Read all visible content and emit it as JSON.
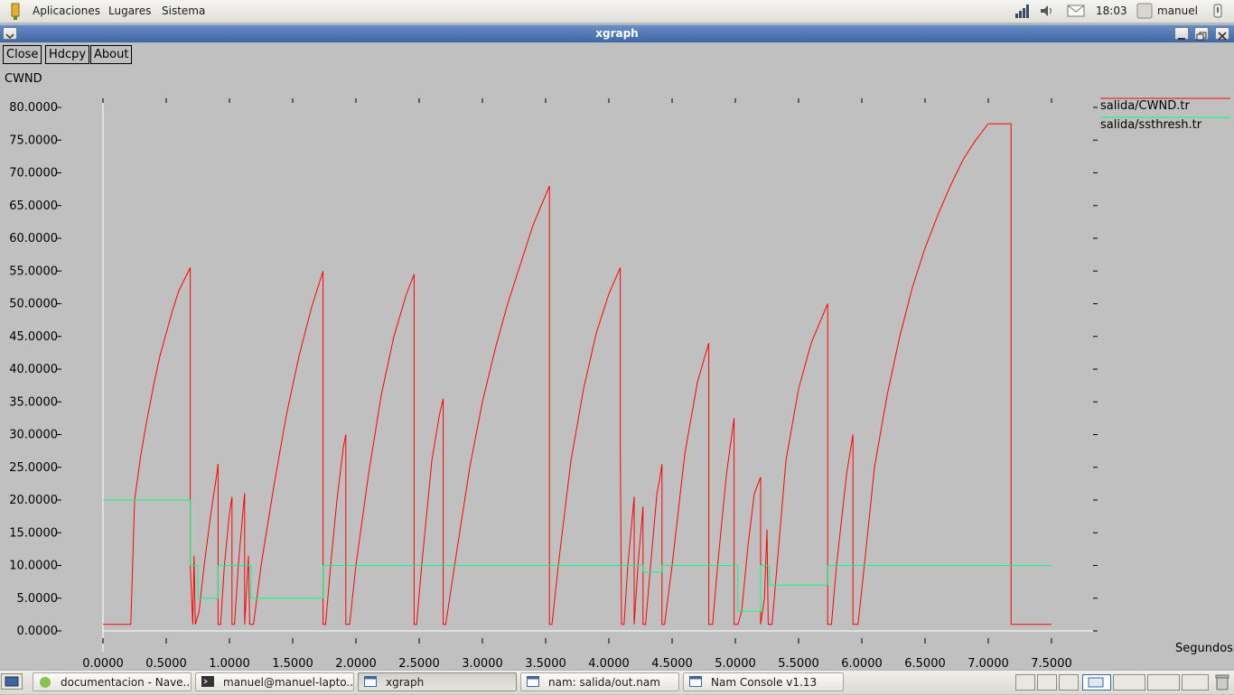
{
  "top_panel": {
    "menus": [
      "Aplicaciones",
      "Lugares",
      "Sistema"
    ],
    "clock": "18:03",
    "user": "manuel",
    "icons": [
      "gnome-foot-icon",
      "network-signal-icon",
      "volume-icon",
      "mail-icon",
      "user-icon",
      "logout-icon"
    ]
  },
  "window": {
    "title": "xgraph",
    "buttons": {
      "close": "Close",
      "hdcpy": "Hdcpy",
      "about": "About"
    },
    "y_axis_title": "CWND",
    "x_axis_title": "Segundos"
  },
  "chart_data": {
    "type": "line",
    "xlim": [
      0,
      7.5
    ],
    "ylim": [
      0,
      80
    ],
    "x_ticks": [
      "0.0000",
      "0.5000",
      "1.0000",
      "1.5000",
      "2.0000",
      "2.5000",
      "3.0000",
      "3.5000",
      "4.0000",
      "4.5000",
      "5.0000",
      "5.5000",
      "6.0000",
      "6.5000",
      "7.0000",
      "7.5000"
    ],
    "y_ticks": [
      "0.0000",
      "5.0000",
      "10.0000",
      "15.0000",
      "20.0000",
      "25.0000",
      "30.0000",
      "35.0000",
      "40.0000",
      "45.0000",
      "50.0000",
      "55.0000",
      "60.0000",
      "65.0000",
      "70.0000",
      "75.0000",
      "80.0000"
    ],
    "legend_position": "top-right",
    "series": [
      {
        "name": "salida/CWND.tr",
        "color": "#ff0000",
        "sawtooth": [
          {
            "t0": 0.23,
            "y0": 20,
            "t1": 0.69,
            "y1": 55
          },
          {
            "t0": 0.92,
            "y0": 2,
            "t1": 0.91,
            "y1": 25.5
          },
          {
            "t0": 1.14,
            "y0": 2,
            "t1": 1.74,
            "y1": 55
          },
          {
            "t0": 1.95,
            "y0": 2,
            "t1": 2.46,
            "y1": 54
          },
          {
            "t0": 2.69,
            "y0": 2,
            "t1": 3.53,
            "y1": 68
          },
          {
            "t0": 3.55,
            "y0": 2,
            "t1": 4.09,
            "y1": 55
          },
          {
            "t0": 4.47,
            "y0": 2,
            "t1": 4.79,
            "y1": 44
          },
          {
            "t0": 5.29,
            "y0": 2,
            "t1": 5.73,
            "y1": 50
          },
          {
            "t0": 5.97,
            "y0": 2,
            "t1": 7.0,
            "y1": 77.5
          }
        ],
        "points": [
          [
            0.0,
            1
          ],
          [
            0.21,
            1
          ],
          [
            0.22,
            1
          ],
          [
            0.25,
            20
          ],
          [
            0.3,
            27
          ],
          [
            0.35,
            32.5
          ],
          [
            0.4,
            37.5
          ],
          [
            0.45,
            42
          ],
          [
            0.5,
            45.5
          ],
          [
            0.55,
            49
          ],
          [
            0.6,
            52
          ],
          [
            0.69,
            55.5
          ],
          [
            0.69,
            10
          ],
          [
            0.71,
            1
          ],
          [
            0.72,
            11.5
          ],
          [
            0.73,
            1
          ],
          [
            0.76,
            3
          ],
          [
            0.8,
            10
          ],
          [
            0.85,
            17.5
          ],
          [
            0.9,
            24
          ],
          [
            0.91,
            25.5
          ],
          [
            0.91,
            1
          ],
          [
            0.93,
            1
          ],
          [
            0.96,
            10
          ],
          [
            1.0,
            18
          ],
          [
            1.02,
            20.5
          ],
          [
            1.02,
            1
          ],
          [
            1.04,
            1
          ],
          [
            1.07,
            10
          ],
          [
            1.11,
            19
          ],
          [
            1.12,
            21
          ],
          [
            1.12,
            1
          ],
          [
            1.15,
            11.5
          ],
          [
            1.16,
            1
          ],
          [
            1.19,
            1
          ],
          [
            1.25,
            10
          ],
          [
            1.35,
            22
          ],
          [
            1.45,
            33
          ],
          [
            1.55,
            42
          ],
          [
            1.65,
            49.5
          ],
          [
            1.74,
            55
          ],
          [
            1.74,
            1
          ],
          [
            1.76,
            1
          ],
          [
            1.8,
            10
          ],
          [
            1.85,
            20
          ],
          [
            1.9,
            28
          ],
          [
            1.92,
            30
          ],
          [
            1.92,
            1
          ],
          [
            1.95,
            1
          ],
          [
            2.0,
            10
          ],
          [
            2.1,
            24
          ],
          [
            2.2,
            36
          ],
          [
            2.3,
            45
          ],
          [
            2.4,
            51.5
          ],
          [
            2.46,
            54.5
          ],
          [
            2.46,
            1
          ],
          [
            2.48,
            1
          ],
          [
            2.52,
            10
          ],
          [
            2.6,
            26
          ],
          [
            2.66,
            33
          ],
          [
            2.69,
            35.5
          ],
          [
            2.69,
            1
          ],
          [
            2.71,
            1
          ],
          [
            2.78,
            10
          ],
          [
            2.9,
            25
          ],
          [
            3.0,
            35
          ],
          [
            3.1,
            43
          ],
          [
            3.2,
            50
          ],
          [
            3.3,
            56
          ],
          [
            3.4,
            62
          ],
          [
            3.53,
            68
          ],
          [
            3.53,
            1
          ],
          [
            3.55,
            1
          ],
          [
            3.6,
            10
          ],
          [
            3.7,
            26
          ],
          [
            3.8,
            37
          ],
          [
            3.9,
            45.5
          ],
          [
            4.0,
            51.5
          ],
          [
            4.09,
            55.5
          ],
          [
            4.09,
            29
          ],
          [
            4.1,
            1
          ],
          [
            4.12,
            1
          ],
          [
            4.15,
            10
          ],
          [
            4.2,
            20.5
          ],
          [
            4.2,
            1
          ],
          [
            4.23,
            10
          ],
          [
            4.27,
            19
          ],
          [
            4.27,
            1
          ],
          [
            4.29,
            1
          ],
          [
            4.33,
            10
          ],
          [
            4.38,
            21
          ],
          [
            4.4,
            23
          ],
          [
            4.42,
            25.5
          ],
          [
            4.42,
            1
          ],
          [
            4.44,
            1
          ],
          [
            4.5,
            10
          ],
          [
            4.6,
            27
          ],
          [
            4.7,
            38
          ],
          [
            4.79,
            44
          ],
          [
            4.79,
            1
          ],
          [
            4.82,
            1
          ],
          [
            4.86,
            10
          ],
          [
            4.93,
            24
          ],
          [
            4.99,
            32.5
          ],
          [
            4.99,
            1
          ],
          [
            5.02,
            1
          ],
          [
            5.05,
            3
          ],
          [
            5.1,
            13
          ],
          [
            5.15,
            21
          ],
          [
            5.2,
            23.5
          ],
          [
            5.2,
            1
          ],
          [
            5.23,
            5
          ],
          [
            5.25,
            15.5
          ],
          [
            5.26,
            1
          ],
          [
            5.29,
            1
          ],
          [
            5.33,
            10
          ],
          [
            5.4,
            26
          ],
          [
            5.5,
            37
          ],
          [
            5.6,
            44
          ],
          [
            5.73,
            50
          ],
          [
            5.73,
            1
          ],
          [
            5.76,
            1
          ],
          [
            5.8,
            10
          ],
          [
            5.88,
            24
          ],
          [
            5.93,
            30
          ],
          [
            5.93,
            1
          ],
          [
            5.97,
            1
          ],
          [
            6.02,
            10
          ],
          [
            6.1,
            25
          ],
          [
            6.2,
            36
          ],
          [
            6.3,
            45
          ],
          [
            6.4,
            52.5
          ],
          [
            6.5,
            58.5
          ],
          [
            6.6,
            63.5
          ],
          [
            6.7,
            68
          ],
          [
            6.8,
            72
          ],
          [
            6.9,
            75
          ],
          [
            7.0,
            77.5
          ],
          [
            7.18,
            77.5
          ],
          [
            7.18,
            1
          ],
          [
            7.5,
            1
          ]
        ]
      },
      {
        "name": "salida/ssthresh.tr",
        "color": "#00ff80",
        "points": [
          [
            0.0,
            20
          ],
          [
            0.69,
            20
          ],
          [
            0.69,
            10
          ],
          [
            0.75,
            10
          ],
          [
            0.75,
            5
          ],
          [
            0.91,
            5
          ],
          [
            0.91,
            10
          ],
          [
            1.17,
            10
          ],
          [
            1.17,
            5
          ],
          [
            1.74,
            5
          ],
          [
            1.74,
            10
          ],
          [
            4.09,
            10
          ],
          [
            4.09,
            10
          ],
          [
            4.27,
            10
          ],
          [
            4.27,
            9
          ],
          [
            4.42,
            9
          ],
          [
            4.42,
            10
          ],
          [
            5.02,
            10
          ],
          [
            5.02,
            3
          ],
          [
            5.2,
            3
          ],
          [
            5.2,
            10
          ],
          [
            5.27,
            10
          ],
          [
            5.27,
            7
          ],
          [
            5.73,
            7
          ],
          [
            5.73,
            10
          ],
          [
            7.5,
            10
          ]
        ]
      }
    ]
  },
  "taskbar": {
    "tasks": [
      {
        "label": "documentacion - Nave...",
        "icon": "browser-icon"
      },
      {
        "label": "manuel@manuel-lapto...",
        "icon": "terminal-icon"
      },
      {
        "label": "xgraph",
        "icon": "window-icon"
      },
      {
        "label": "nam: salida/out.nam",
        "icon": "window-icon"
      },
      {
        "label": "Nam Console v1.13",
        "icon": "window-icon"
      }
    ]
  }
}
